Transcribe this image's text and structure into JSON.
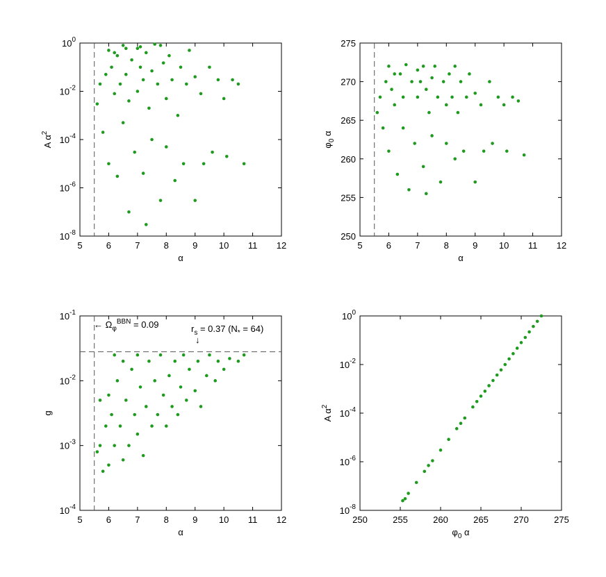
{
  "chart_data": [
    {
      "type": "scatter",
      "xlabel": [
        {
          "text": "α"
        }
      ],
      "ylabel": [
        {
          "text": "A α"
        },
        {
          "text": "2",
          "script": "sup"
        }
      ],
      "xlim": [
        5,
        12
      ],
      "xticks": [
        5,
        6,
        7,
        8,
        9,
        10,
        11,
        12
      ],
      "ylim": [
        1e-08,
        1
      ],
      "log_y": true,
      "yticks": [
        {
          "value": 1e-08,
          "label": "10",
          "sup": "-8"
        },
        {
          "value": 1e-06,
          "label": "10",
          "sup": "-6"
        },
        {
          "value": 0.0001,
          "label": "10",
          "sup": "-4"
        },
        {
          "value": 0.01,
          "label": "10",
          "sup": "-2"
        },
        {
          "value": 1,
          "label": "10",
          "sup": "0"
        }
      ],
      "vline": 5.5,
      "line_style": "dashed",
      "series": [
        {
          "color": "#1e9b1e",
          "x": [
            5.6,
            5.7,
            5.8,
            5.9,
            6.0,
            6.0,
            6.1,
            6.2,
            6.3,
            6.3,
            6.4,
            6.5,
            6.5,
            6.6,
            6.7,
            6.7,
            6.8,
            6.9,
            7.0,
            7.0,
            7.1,
            7.2,
            7.2,
            7.3,
            7.3,
            7.4,
            7.5,
            7.5,
            7.6,
            7.7,
            7.8,
            7.9,
            8.0,
            8.0,
            8.1,
            8.2,
            8.3,
            8.4,
            8.5,
            8.6,
            8.7,
            8.8,
            9.0,
            9.0,
            9.2,
            9.3,
            9.5,
            9.6,
            9.8,
            10.0,
            10.1,
            10.3,
            10.5,
            10.7,
            6.6,
            7.1,
            6.2,
            7.8
          ],
          "values": [
            0.003,
            0.02,
            0.0002,
            0.05,
            0.5,
            1e-05,
            0.1,
            0.008,
            3e-06,
            0.3,
            0.02,
            0.0005,
            0.8,
            0.05,
            1e-07,
            0.004,
            0.2,
            3e-05,
            0.6,
            0.01,
            0.1,
            4e-06,
            0.03,
            0.4,
            3e-08,
            0.002,
            0.07,
            0.0001,
            0.9,
            0.02,
            3e-07,
            0.15,
            0.005,
            5e-05,
            0.3,
            0.03,
            2e-06,
            0.001,
            0.1,
            1e-05,
            0.02,
            0.5,
            0.04,
            3e-07,
            0.008,
            1e-05,
            0.1,
            3e-05,
            0.03,
            0.005,
            2e-05,
            0.03,
            0.02,
            1e-05,
            0.6,
            0.7,
            0.4,
            0.8
          ]
        }
      ]
    },
    {
      "type": "scatter",
      "xlabel": [
        {
          "text": "α"
        }
      ],
      "ylabel": [
        {
          "text": "φ"
        },
        {
          "text": "0",
          "script": "sub"
        },
        {
          "text": " α"
        }
      ],
      "xlim": [
        5,
        12
      ],
      "xticks": [
        5,
        6,
        7,
        8,
        9,
        10,
        11,
        12
      ],
      "ylim": [
        250,
        275
      ],
      "log_y": false,
      "yticks": [
        250,
        255,
        260,
        265,
        270,
        275
      ],
      "vline": 5.5,
      "line_style": "dashed",
      "series": [
        {
          "color": "#1e9b1e",
          "x": [
            5.6,
            5.7,
            5.8,
            5.9,
            6.0,
            6.0,
            6.1,
            6.2,
            6.3,
            6.4,
            6.5,
            6.5,
            6.6,
            6.7,
            6.8,
            6.9,
            7.0,
            7.0,
            7.1,
            7.2,
            7.3,
            7.3,
            7.4,
            7.5,
            7.5,
            7.6,
            7.7,
            7.8,
            7.9,
            8.0,
            8.0,
            8.1,
            8.2,
            8.3,
            8.4,
            8.5,
            8.6,
            8.7,
            8.8,
            9.0,
            9.0,
            9.2,
            9.3,
            9.5,
            9.6,
            9.8,
            10.0,
            10.1,
            10.3,
            10.5,
            10.7,
            6.2,
            7.2,
            8.3
          ],
          "values": [
            266,
            268,
            264,
            270,
            272,
            261,
            269,
            267,
            258,
            271,
            268,
            264,
            272.2,
            256,
            270,
            262,
            271.5,
            268,
            270,
            259,
            269,
            255.5,
            266,
            270.5,
            263,
            272,
            268,
            257,
            270,
            267,
            262,
            271,
            268,
            260,
            266,
            270,
            261,
            268,
            271,
            268.5,
            257,
            267,
            261,
            270,
            262,
            268,
            267,
            261,
            268,
            267.5,
            260.5,
            271,
            272,
            272
          ]
        }
      ]
    },
    {
      "type": "scatter",
      "xlabel": [
        {
          "text": "α"
        }
      ],
      "ylabel": [
        {
          "text": "g"
        }
      ],
      "xlim": [
        5,
        12
      ],
      "xticks": [
        5,
        6,
        7,
        8,
        9,
        10,
        11,
        12
      ],
      "ylim": [
        0.0001,
        0.1
      ],
      "log_y": true,
      "yticks": [
        {
          "value": 0.0001,
          "label": "10",
          "sup": "-4"
        },
        {
          "value": 0.001,
          "label": "10",
          "sup": "-3"
        },
        {
          "value": 0.01,
          "label": "10",
          "sup": "-2"
        },
        {
          "value": 0.1,
          "label": "10",
          "sup": "-1"
        }
      ],
      "vline": 5.5,
      "hline": 0.028,
      "line_style": "dashed",
      "annotations": [
        [
          {
            "text": "← Ω"
          },
          {
            "text": "φ",
            "script": "sub"
          },
          {
            "text": "BBN",
            "script": "sup"
          },
          {
            "text": " = 0.09"
          }
        ],
        [
          {
            "text": "r"
          },
          {
            "text": "s",
            "script": "sub"
          },
          {
            "text": " = 0.37 (N"
          },
          {
            "text": "*",
            "script": "sub"
          },
          {
            "text": " = 64)"
          }
        ],
        [
          {
            "text": "↓"
          }
        ]
      ],
      "series": [
        {
          "color": "#1e9b1e",
          "x": [
            5.6,
            5.7,
            5.8,
            5.9,
            6.0,
            6.0,
            6.1,
            6.2,
            6.3,
            6.4,
            6.5,
            6.5,
            6.6,
            6.7,
            6.8,
            6.9,
            7.0,
            7.0,
            7.1,
            7.2,
            7.3,
            7.4,
            7.5,
            7.6,
            7.7,
            7.8,
            7.9,
            8.0,
            8.1,
            8.2,
            8.3,
            8.4,
            8.5,
            8.6,
            8.7,
            8.8,
            9.0,
            9.1,
            9.2,
            9.4,
            9.5,
            9.7,
            9.8,
            10.0,
            10.2,
            10.5,
            10.7,
            6.2,
            5.7
          ],
          "values": [
            0.0008,
            0.001,
            0.0004,
            0.002,
            0.006,
            0.0005,
            0.003,
            0.001,
            0.01,
            0.002,
            0.02,
            0.0006,
            0.005,
            0.001,
            0.015,
            0.003,
            0.025,
            0.0015,
            0.008,
            0.0007,
            0.004,
            0.02,
            0.002,
            0.01,
            0.003,
            0.025,
            0.006,
            0.002,
            0.012,
            0.004,
            0.02,
            0.003,
            0.008,
            0.025,
            0.005,
            0.015,
            0.007,
            0.02,
            0.004,
            0.012,
            0.025,
            0.01,
            0.02,
            0.015,
            0.022,
            0.02,
            0.025,
            0.025,
            0.005
          ]
        }
      ]
    },
    {
      "type": "scatter",
      "xlabel": [
        {
          "text": "φ"
        },
        {
          "text": "0",
          "script": "sub"
        },
        {
          "text": " α"
        }
      ],
      "ylabel": [
        {
          "text": "A α"
        },
        {
          "text": "2",
          "script": "sup"
        }
      ],
      "xlim": [
        250,
        275
      ],
      "xticks": [
        250,
        255,
        260,
        265,
        270,
        275
      ],
      "ylim": [
        1e-08,
        1
      ],
      "log_y": true,
      "yticks": [
        {
          "value": 1e-08,
          "label": "10",
          "sup": "-8"
        },
        {
          "value": 1e-06,
          "label": "10",
          "sup": "-6"
        },
        {
          "value": 0.0001,
          "label": "10",
          "sup": "-4"
        },
        {
          "value": 0.01,
          "label": "10",
          "sup": "-2"
        },
        {
          "value": 1,
          "label": "10",
          "sup": "0"
        }
      ],
      "series": [
        {
          "color": "#1e9b1e",
          "x": [
            255.3,
            255.6,
            256,
            257,
            258,
            258.5,
            259,
            260,
            261,
            262,
            262.5,
            263,
            264,
            264.5,
            265,
            265.5,
            266,
            266.5,
            267,
            267.5,
            268,
            268.5,
            269,
            269.5,
            270,
            270.5,
            271,
            271.5,
            272,
            272.5
          ],
          "values": [
            2.5e-08,
            3e-08,
            5e-08,
            1.4e-07,
            4e-07,
            7e-07,
            1.1e-06,
            3e-06,
            8.3e-06,
            2.3e-05,
            3.8e-05,
            6.3e-05,
            0.00018,
            0.0003,
            0.0005,
            0.0008,
            0.00135,
            0.0022,
            0.0037,
            0.006,
            0.01,
            0.017,
            0.028,
            0.047,
            0.08,
            0.13,
            0.22,
            0.37,
            0.6,
            1
          ]
        }
      ]
    }
  ]
}
